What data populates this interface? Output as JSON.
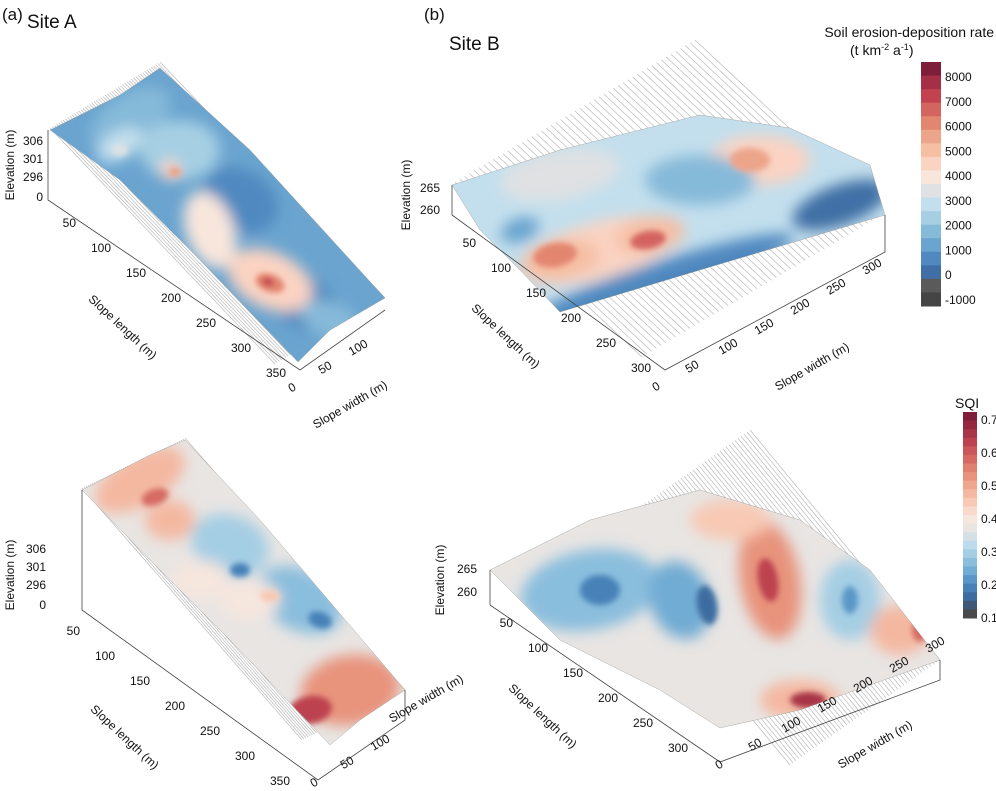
{
  "chart_data": {
    "type": "surface",
    "panels": [
      {
        "id": "a-top",
        "panel_label": "(a)",
        "site": "Site A",
        "variable": "Soil erosion-deposition rate",
        "zlabel": "Elevation (m)",
        "zticks": [
          "306",
          "301",
          "296",
          "0"
        ],
        "xlabel": "Slope length (m)",
        "xticks": [
          "50",
          "100",
          "150",
          "200",
          "250",
          "300",
          "350"
        ],
        "ylabel": "Slope width (m)",
        "yticks": [
          "0",
          "50",
          "100"
        ]
      },
      {
        "id": "b-top",
        "panel_label": "(b)",
        "site": "Site B",
        "variable": "Soil erosion-deposition rate",
        "zlabel": "Elevation (m)",
        "zticks": [
          "265",
          "260"
        ],
        "xlabel": "Slope length (m)",
        "xticks": [
          "50",
          "100",
          "150",
          "200",
          "250",
          "300"
        ],
        "ylabel": "Slope width (m)",
        "yticks": [
          "0",
          "50",
          "100",
          "150",
          "200",
          "250",
          "300"
        ]
      },
      {
        "id": "a-bottom",
        "site": "Site A",
        "variable": "SQI",
        "zlabel": "Elevation (m)",
        "zticks": [
          "306",
          "301",
          "296",
          "0"
        ],
        "xlabel": "Slope length (m)",
        "xticks": [
          "50",
          "100",
          "150",
          "200",
          "250",
          "300",
          "350"
        ],
        "ylabel": "Slope width (m)",
        "yticks": [
          "0",
          "50",
          "100"
        ]
      },
      {
        "id": "b-bottom",
        "site": "Site B",
        "variable": "SQI",
        "zlabel": "Elevation (m)",
        "zticks": [
          "265",
          "260"
        ],
        "xlabel": "Slope length (m)",
        "xticks": [
          "50",
          "100",
          "150",
          "200",
          "250",
          "300"
        ],
        "ylabel": "Slope width (m)",
        "yticks": [
          "0",
          "50",
          "100",
          "150",
          "200",
          "250",
          "300"
        ]
      }
    ],
    "colorbars": [
      {
        "id": "erosion",
        "title": "Soil erosion-deposition rate",
        "unit": "(t km-2 a-1)",
        "range": [
          -1000,
          8500
        ],
        "ticks": [
          "8000",
          "7000",
          "6000",
          "5000",
          "4000",
          "3000",
          "2000",
          "1000",
          "0",
          "-1000"
        ],
        "colors": [
          "#7e1e3a",
          "#a52f47",
          "#c2434f",
          "#d46460",
          "#e38670",
          "#eca48a",
          "#f6bfa4",
          "#fad3c2",
          "#f8e6dc",
          "#dfe1e3",
          "#c3dfed",
          "#a6cfe3",
          "#86bad9",
          "#6aa4cf",
          "#5089c0",
          "#3f6fa5",
          "#5a5a5a",
          "#454545"
        ]
      },
      {
        "id": "sqi",
        "title": "SQI",
        "range": [
          0.1,
          0.72
        ],
        "ticks": [
          "0.7",
          "0.6",
          "0.5",
          "0.4",
          "0.3",
          "0.2",
          "0.1"
        ],
        "colors": [
          "#7e1e3a",
          "#94283f",
          "#a83447",
          "#bd4250",
          "#cc575a",
          "#d66a63",
          "#e0806f",
          "#e8937c",
          "#eea68d",
          "#f4b8a0",
          "#f8c9b4",
          "#f9d9cb",
          "#f5e6de",
          "#e8e5e3",
          "#d5e0e6",
          "#bcdcec",
          "#a4cee4",
          "#8abedd",
          "#71acd4",
          "#5a97c8",
          "#4781b8",
          "#3d6da0",
          "#3e5876",
          "#4a4a4a"
        ]
      }
    ]
  }
}
